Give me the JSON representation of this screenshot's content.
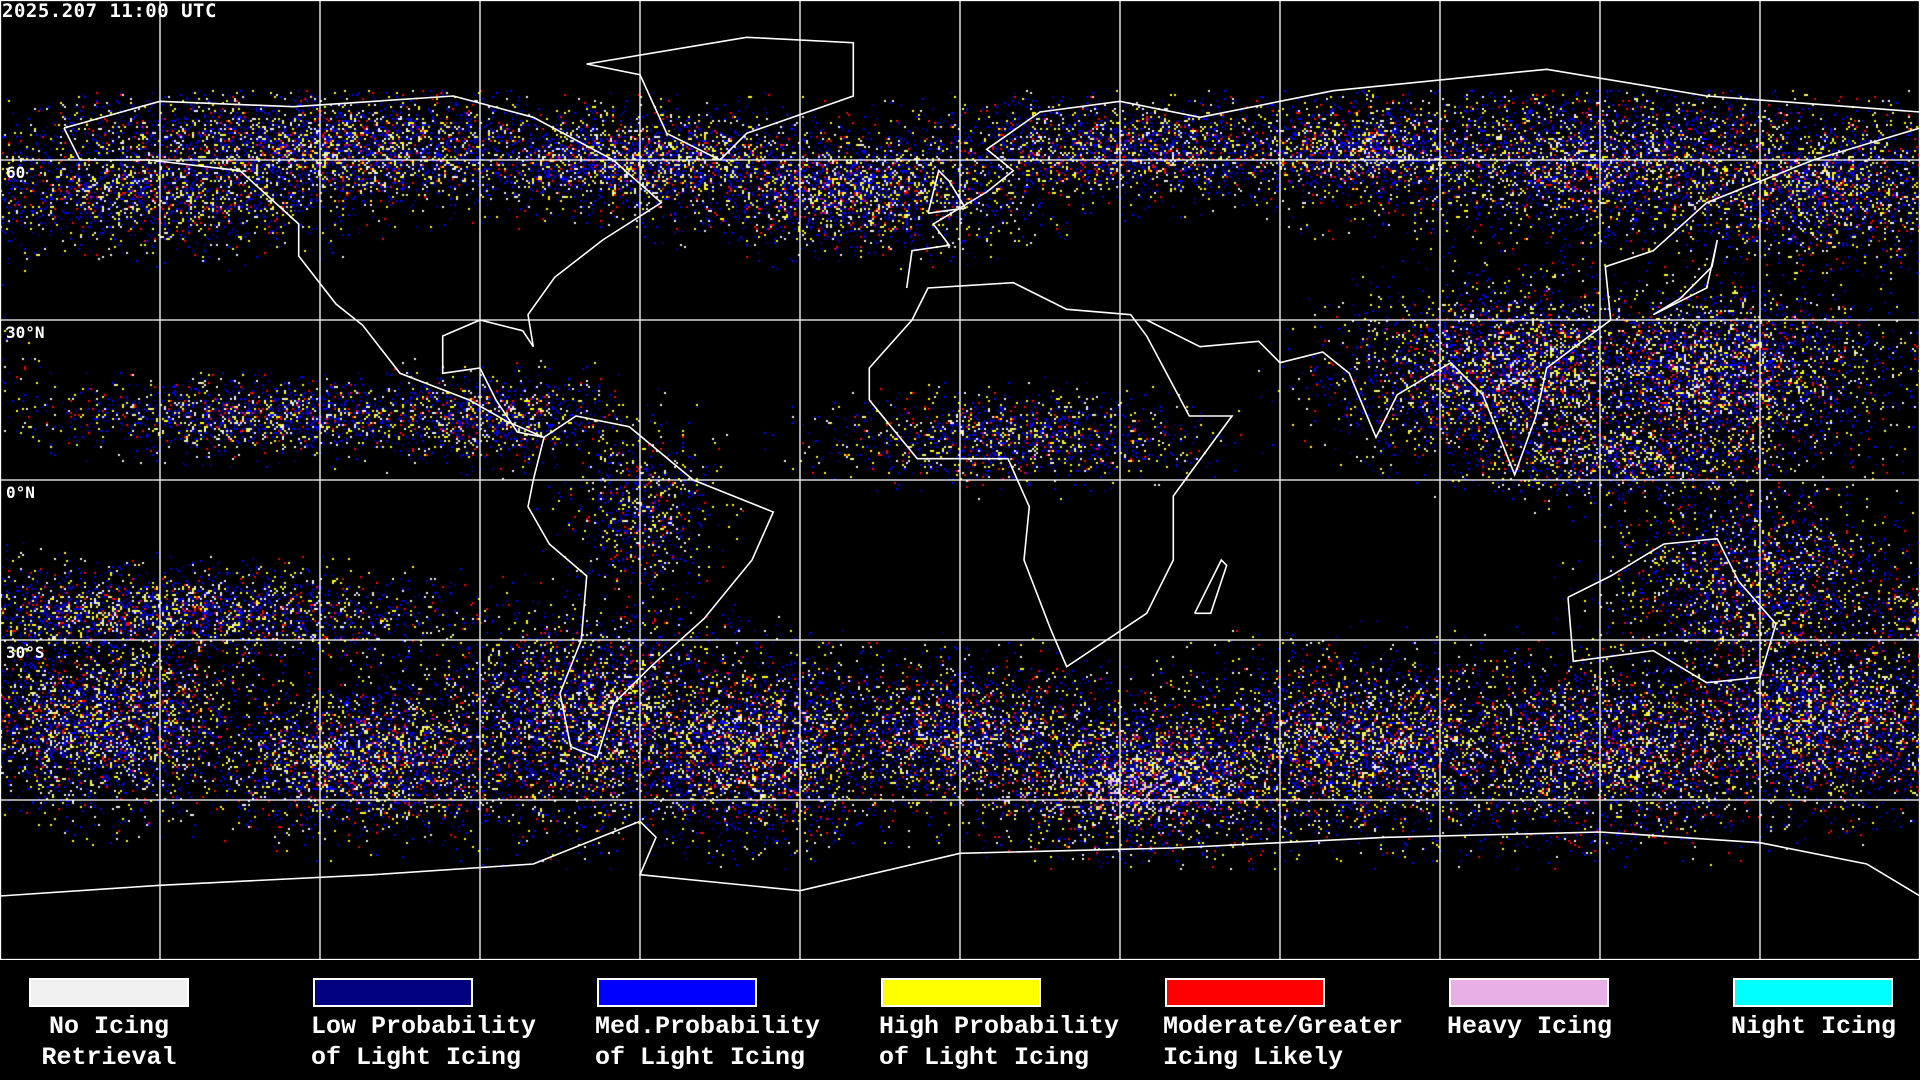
{
  "timestamp": "2025.207 11:00 UTC",
  "lat_labels": [
    "60",
    "30°N",
    "0°N",
    "30°S"
  ],
  "map": {
    "projection": "equirectangular",
    "grid_spacing_degrees": 30,
    "background_color": "#000000",
    "coastline_color": "#ffffff",
    "grid_color": "#ffffff"
  },
  "legend": [
    {
      "line1": "No Icing",
      "line2": "Retrieval",
      "color": "#f0f0f0"
    },
    {
      "line1": "Low Probability",
      "line2": "of Light Icing",
      "color": "#000080"
    },
    {
      "line1": "Med.Probability",
      "line2": "of Light Icing",
      "color": "#0000ff"
    },
    {
      "line1": "High Probability",
      "line2": "of Light Icing",
      "color": "#ffff00"
    },
    {
      "line1": "Moderate/Greater",
      "line2": "Icing Likely",
      "color": "#ff0000"
    },
    {
      "line1": "Heavy Icing",
      "line2": "",
      "color": "#e8aee6"
    },
    {
      "line1": "Night Icing",
      "line2": "",
      "color": "#00ffff"
    }
  ]
}
